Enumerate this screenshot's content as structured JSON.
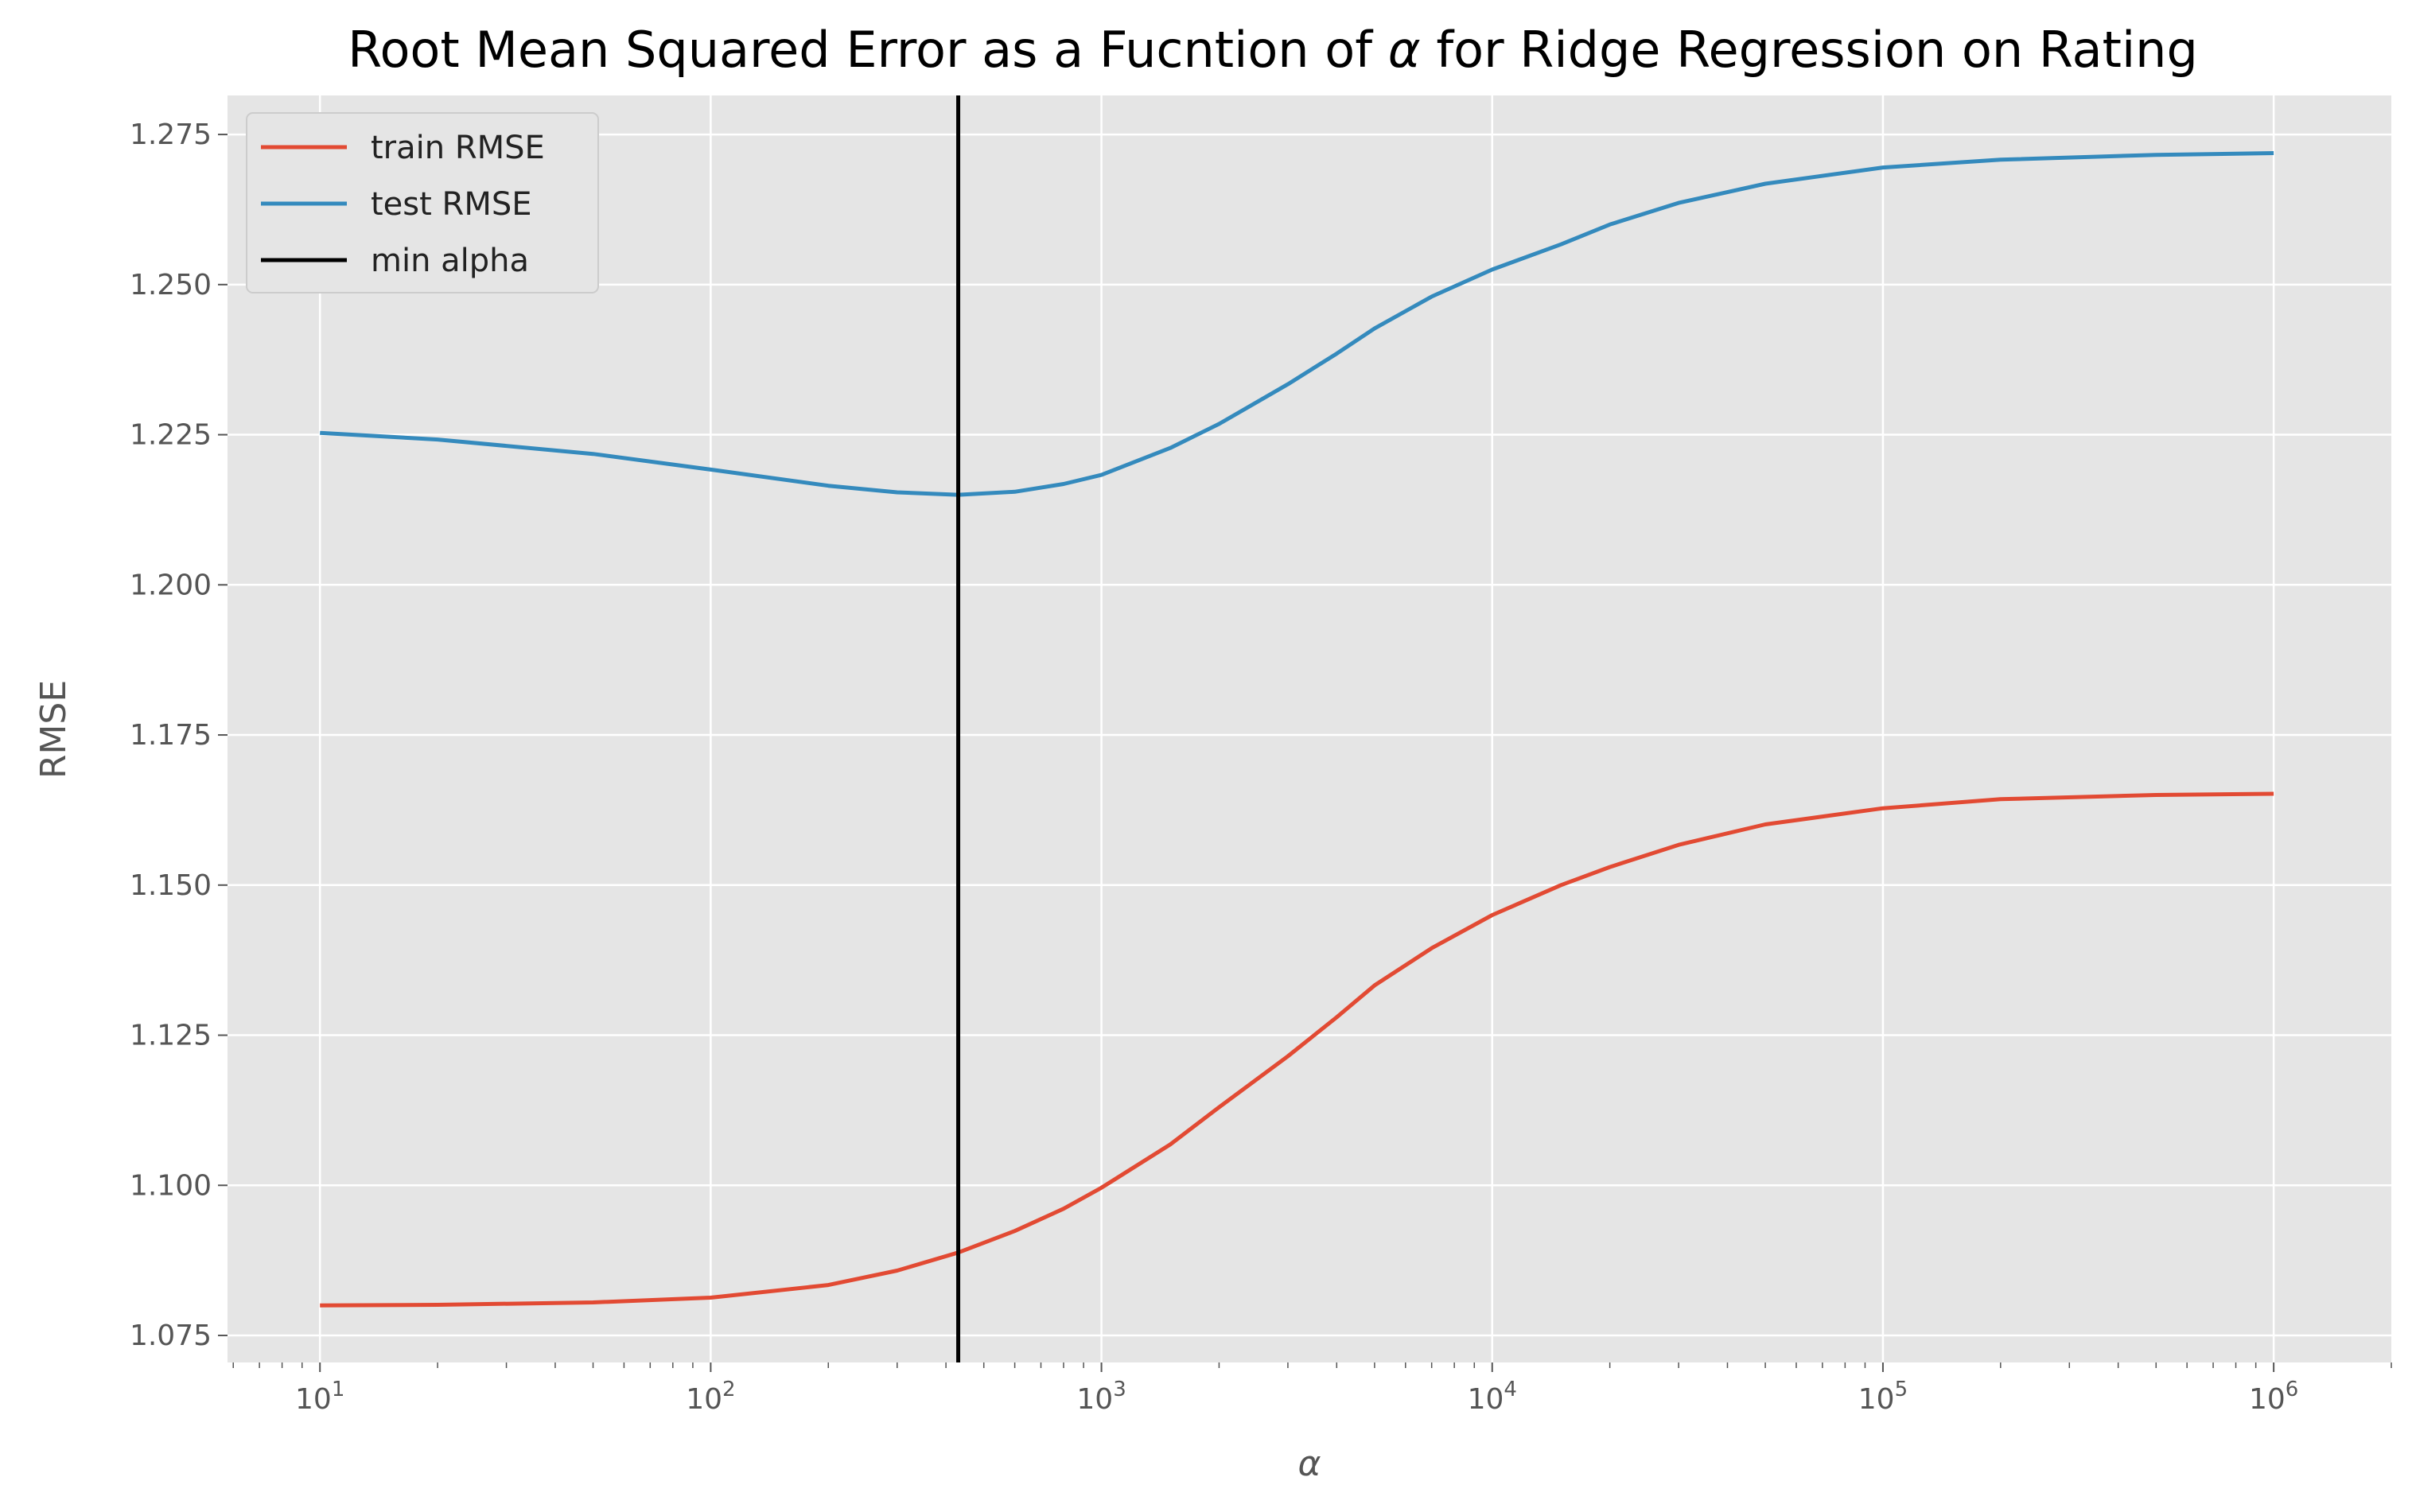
{
  "chart_data": {
    "type": "line",
    "title_parts": [
      "Root Mean Squared Error as a Fucntion of ",
      "α",
      " for Ridge Regression on Rating"
    ],
    "xlabel": "α",
    "ylabel": "RMSE",
    "x_scale": "log",
    "xlim": [
      5.8,
      2000000
    ],
    "ylim": [
      1.0705,
      1.2815
    ],
    "grid": true,
    "legend_position": "top-left",
    "x_ticks": [
      {
        "value": 10,
        "base": "10",
        "exp": "1"
      },
      {
        "value": 100,
        "base": "10",
        "exp": "2"
      },
      {
        "value": 1000,
        "base": "10",
        "exp": "3"
      },
      {
        "value": 10000,
        "base": "10",
        "exp": "4"
      },
      {
        "value": 100000,
        "base": "10",
        "exp": "5"
      },
      {
        "value": 1000000,
        "base": "10",
        "exp": "6"
      }
    ],
    "y_ticks": [
      "1.075",
      "1.100",
      "1.125",
      "1.150",
      "1.175",
      "1.200",
      "1.225",
      "1.250",
      "1.275"
    ],
    "series": [
      {
        "name": "train RMSE",
        "color": "#E24A33",
        "x": [
          10,
          20,
          50,
          100,
          200,
          300,
          430,
          600,
          800,
          1000,
          1500,
          2000,
          3000,
          4000,
          5000,
          7000,
          10000,
          15000,
          20000,
          30000,
          50000,
          100000,
          200000,
          500000,
          1000000
        ],
        "y": [
          1.08,
          1.0801,
          1.0805,
          1.0813,
          1.0834,
          1.0858,
          1.0888,
          1.0924,
          1.0961,
          1.0996,
          1.1068,
          1.113,
          1.1215,
          1.128,
          1.1333,
          1.1395,
          1.145,
          1.15,
          1.153,
          1.1567,
          1.1601,
          1.1628,
          1.1643,
          1.165,
          1.1652
        ]
      },
      {
        "name": "test RMSE",
        "color": "#348ABD",
        "x": [
          10,
          20,
          50,
          100,
          200,
          300,
          430,
          600,
          800,
          1000,
          1500,
          2000,
          3000,
          4000,
          5000,
          7000,
          10000,
          15000,
          20000,
          30000,
          50000,
          100000,
          200000,
          500000,
          1000000
        ],
        "y": [
          1.2253,
          1.2242,
          1.2218,
          1.2192,
          1.2165,
          1.2154,
          1.215,
          1.2155,
          1.2168,
          1.2183,
          1.2228,
          1.2268,
          1.2334,
          1.2385,
          1.2427,
          1.248,
          1.2525,
          1.2567,
          1.26,
          1.2636,
          1.2668,
          1.2695,
          1.2708,
          1.2716,
          1.2719
        ]
      }
    ],
    "vline": {
      "name": "min alpha",
      "x": 430,
      "color": "#000000"
    }
  }
}
